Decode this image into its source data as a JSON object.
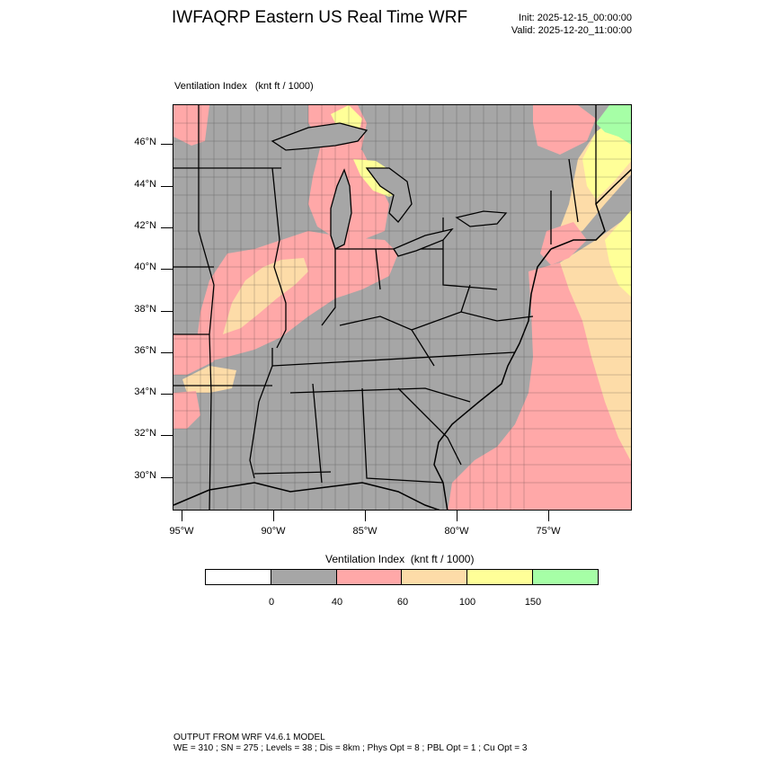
{
  "header": {
    "title": "IWFAQRP Eastern US Real Time WRF",
    "init": "Init: 2025-12-15_00:00:00",
    "valid": "Valid: 2025-12-20_11:00:00"
  },
  "plot": {
    "label": "Ventilation Index   (knt ft / 1000)",
    "lat_labels": [
      "46°N",
      "44°N",
      "42°N",
      "40°N",
      "38°N",
      "36°N",
      "34°N",
      "32°N",
      "30°N"
    ],
    "lon_labels": [
      "95°W",
      "90°W",
      "85°W",
      "80°W",
      "75°W"
    ]
  },
  "colorbar": {
    "title": "Ventilation Index  (knt ft / 1000)",
    "colors": [
      "#ffffff",
      "#a6a6a6",
      "#ffa8a8",
      "#fddca8",
      "#ffff98",
      "#a6ffa6"
    ],
    "labels": [
      "0",
      "40",
      "60",
      "100",
      "150"
    ]
  },
  "footer": {
    "line1": "OUTPUT FROM WRF V4.6.1 MODEL",
    "line2": "WE = 310 ; SN = 275 ; Levels = 38 ; Dis = 8km ; Phys Opt = 8 ; PBL Opt = 1 ; Cu Opt = 3"
  }
}
